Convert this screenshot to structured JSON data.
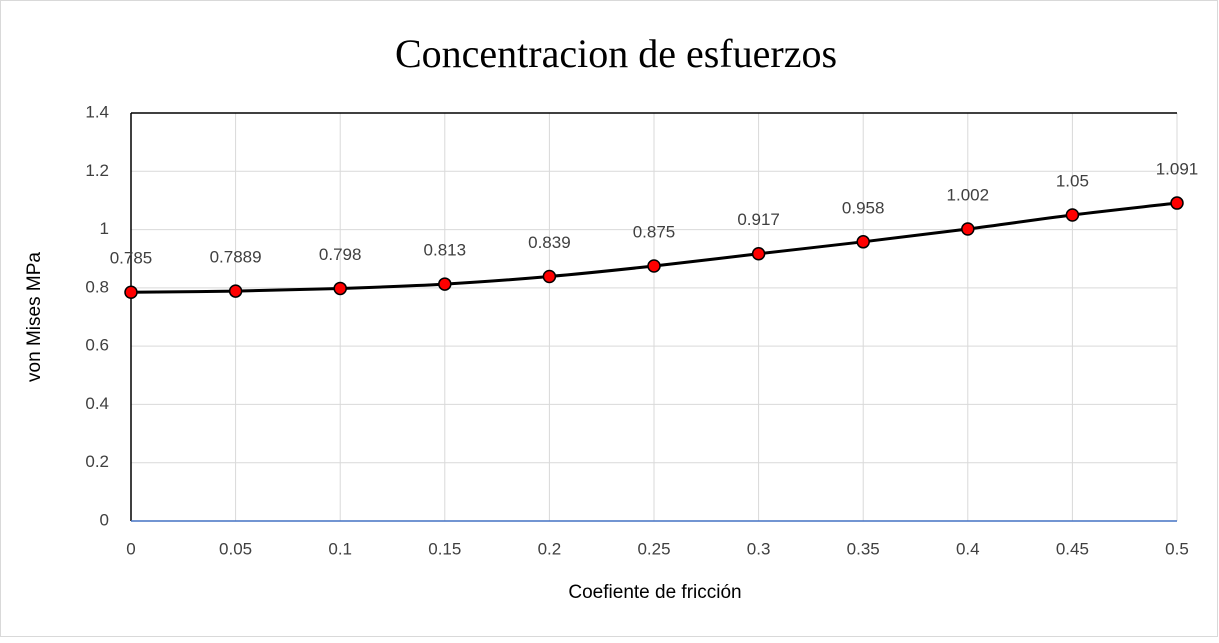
{
  "chart_data": {
    "type": "line",
    "title": "Concentracion de esfuerzos",
    "x_label": "Coefiente de fricción",
    "y_label": "von Mises MPa",
    "x": [
      0,
      0.05,
      0.1,
      0.15,
      0.2,
      0.25,
      0.3,
      0.35,
      0.4,
      0.45,
      0.5
    ],
    "series": [
      {
        "name": "von Mises",
        "color": "#000000",
        "marker_color": "#ff0000",
        "values": [
          0.785,
          0.7889,
          0.798,
          0.813,
          0.839,
          0.875,
          0.917,
          0.958,
          1.002,
          1.05,
          1.091
        ]
      }
    ],
    "xlim": [
      0,
      0.5
    ],
    "xticks": [
      0,
      0.05,
      0.1,
      0.15,
      0.2,
      0.25,
      0.3,
      0.35,
      0.4,
      0.45,
      0.5
    ],
    "ylim": [
      0,
      1.4
    ],
    "yticks": [
      0,
      0.2,
      0.4,
      0.6,
      0.8,
      1,
      1.2,
      1.4
    ],
    "grid": true,
    "smooth": true
  }
}
